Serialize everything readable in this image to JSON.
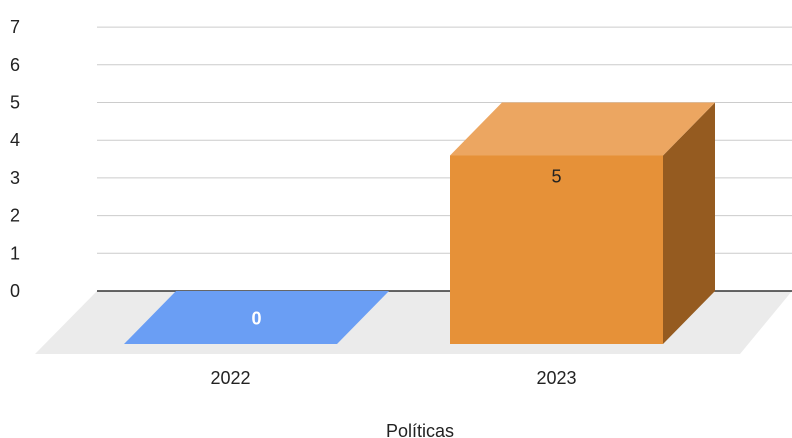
{
  "chart_data": {
    "type": "bar",
    "style": "3d",
    "categories": [
      "2022",
      "2023"
    ],
    "values": [
      0,
      5
    ],
    "data_labels": [
      "0",
      "5"
    ],
    "title": "",
    "xlabel": "Políticas",
    "ylabel": "",
    "ylim": [
      0,
      7
    ],
    "yticks": [
      "0",
      "1",
      "2",
      "3",
      "4",
      "5",
      "6",
      "7"
    ],
    "grid": true,
    "legend": "none",
    "colors": {
      "bar_2022": "#6a9ef4",
      "bar_2023_front": "#e69138",
      "bar_2023_top": "#eca661",
      "bar_2023_side": "#955b20",
      "floor": "#ebebeb",
      "grid": "#cccccc",
      "baseline": "#333333"
    }
  }
}
